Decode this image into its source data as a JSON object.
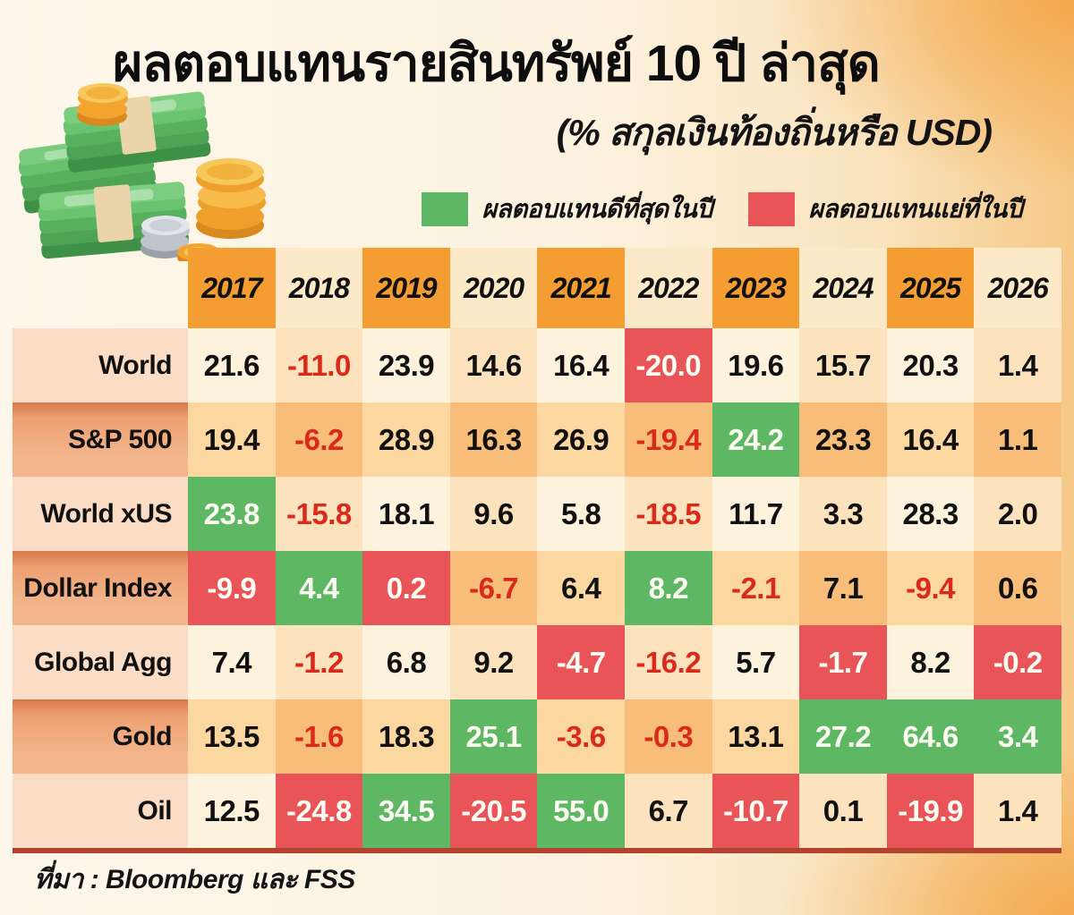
{
  "title": "ผลตอบแทนรายสินทรัพย์ 10 ปี ล่าสุด",
  "subtitle": "(% สกุลเงินท้องถิ่นหรือ USD)",
  "legend": {
    "best": {
      "label": "ผลตอบแทนดีที่สุดในปี",
      "color": "#5eb863"
    },
    "worst": {
      "label": "ผลตอบแทนแย่ที่ในปี",
      "color": "#e85458"
    }
  },
  "source": "ที่มา : Bloomberg และ FSS",
  "colors": {
    "best_bg": "#5eb863",
    "worst_bg": "#e85458",
    "negative_text": "#d92a1b",
    "header_orange": "#f49d33",
    "bottom_rule": "#b2432e"
  },
  "chart_data": {
    "type": "table",
    "title": "ผลตอบแทนรายสินทรัพย์ 10 ปี ล่าสุด",
    "subtitle": "(% สกุลเงินท้องถิ่นหรือ USD)",
    "unit": "% local currency or USD",
    "columns": [
      "2017",
      "2018",
      "2019",
      "2020",
      "2021",
      "2022",
      "2023",
      "2024",
      "2025",
      "2026"
    ],
    "state_meaning": {
      "best": "green = best return of the year",
      "worst": "red = worst return of the year",
      "neg": "red text = negative return",
      "pos": "plain positive return"
    },
    "rows": [
      {
        "label": "World",
        "values": [
          "21.6",
          "-11.0",
          "23.9",
          "14.6",
          "16.4",
          "-20.0",
          "19.6",
          "15.7",
          "20.3",
          "1.4"
        ],
        "states": [
          "pos",
          "neg",
          "pos",
          "pos",
          "pos",
          "worst",
          "pos",
          "pos",
          "pos",
          "pos"
        ]
      },
      {
        "label": "S&P 500",
        "values": [
          "19.4",
          "-6.2",
          "28.9",
          "16.3",
          "26.9",
          "-19.4",
          "24.2",
          "23.3",
          "16.4",
          "1.1"
        ],
        "states": [
          "pos",
          "neg",
          "pos",
          "pos",
          "pos",
          "neg",
          "best",
          "pos",
          "pos",
          "pos"
        ]
      },
      {
        "label": "World xUS",
        "values": [
          "23.8",
          "-15.8",
          "18.1",
          "9.6",
          "5.8",
          "-18.5",
          "11.7",
          "3.3",
          "28.3",
          "2.0"
        ],
        "states": [
          "best",
          "neg",
          "pos",
          "pos",
          "pos",
          "neg",
          "pos",
          "pos",
          "pos",
          "pos"
        ]
      },
      {
        "label": "Dollar Index",
        "values": [
          "-9.9",
          "4.4",
          "0.2",
          "-6.7",
          "6.4",
          "8.2",
          "-2.1",
          "7.1",
          "-9.4",
          "0.6"
        ],
        "states": [
          "worst",
          "best",
          "worst",
          "neg",
          "pos",
          "best",
          "neg",
          "pos",
          "neg",
          "pos"
        ]
      },
      {
        "label": "Global Agg",
        "values": [
          "7.4",
          "-1.2",
          "6.8",
          "9.2",
          "-4.7",
          "-16.2",
          "5.7",
          "-1.7",
          "8.2",
          "-0.2"
        ],
        "states": [
          "pos",
          "neg",
          "pos",
          "pos",
          "worst",
          "neg",
          "pos",
          "worst",
          "pos",
          "worst"
        ]
      },
      {
        "label": "Gold",
        "values": [
          "13.5",
          "-1.6",
          "18.3",
          "25.1",
          "-3.6",
          "-0.3",
          "13.1",
          "27.2",
          "64.6",
          "3.4"
        ],
        "states": [
          "pos",
          "neg",
          "pos",
          "best",
          "neg",
          "neg",
          "pos",
          "best",
          "best",
          "best"
        ]
      },
      {
        "label": "Oil",
        "values": [
          "12.5",
          "-24.8",
          "34.5",
          "-20.5",
          "55.0",
          "6.7",
          "-10.7",
          "0.1",
          "-19.9",
          "1.4"
        ],
        "states": [
          "pos",
          "worst",
          "best",
          "worst",
          "best",
          "pos",
          "worst",
          "pos",
          "worst",
          "pos"
        ]
      }
    ]
  }
}
